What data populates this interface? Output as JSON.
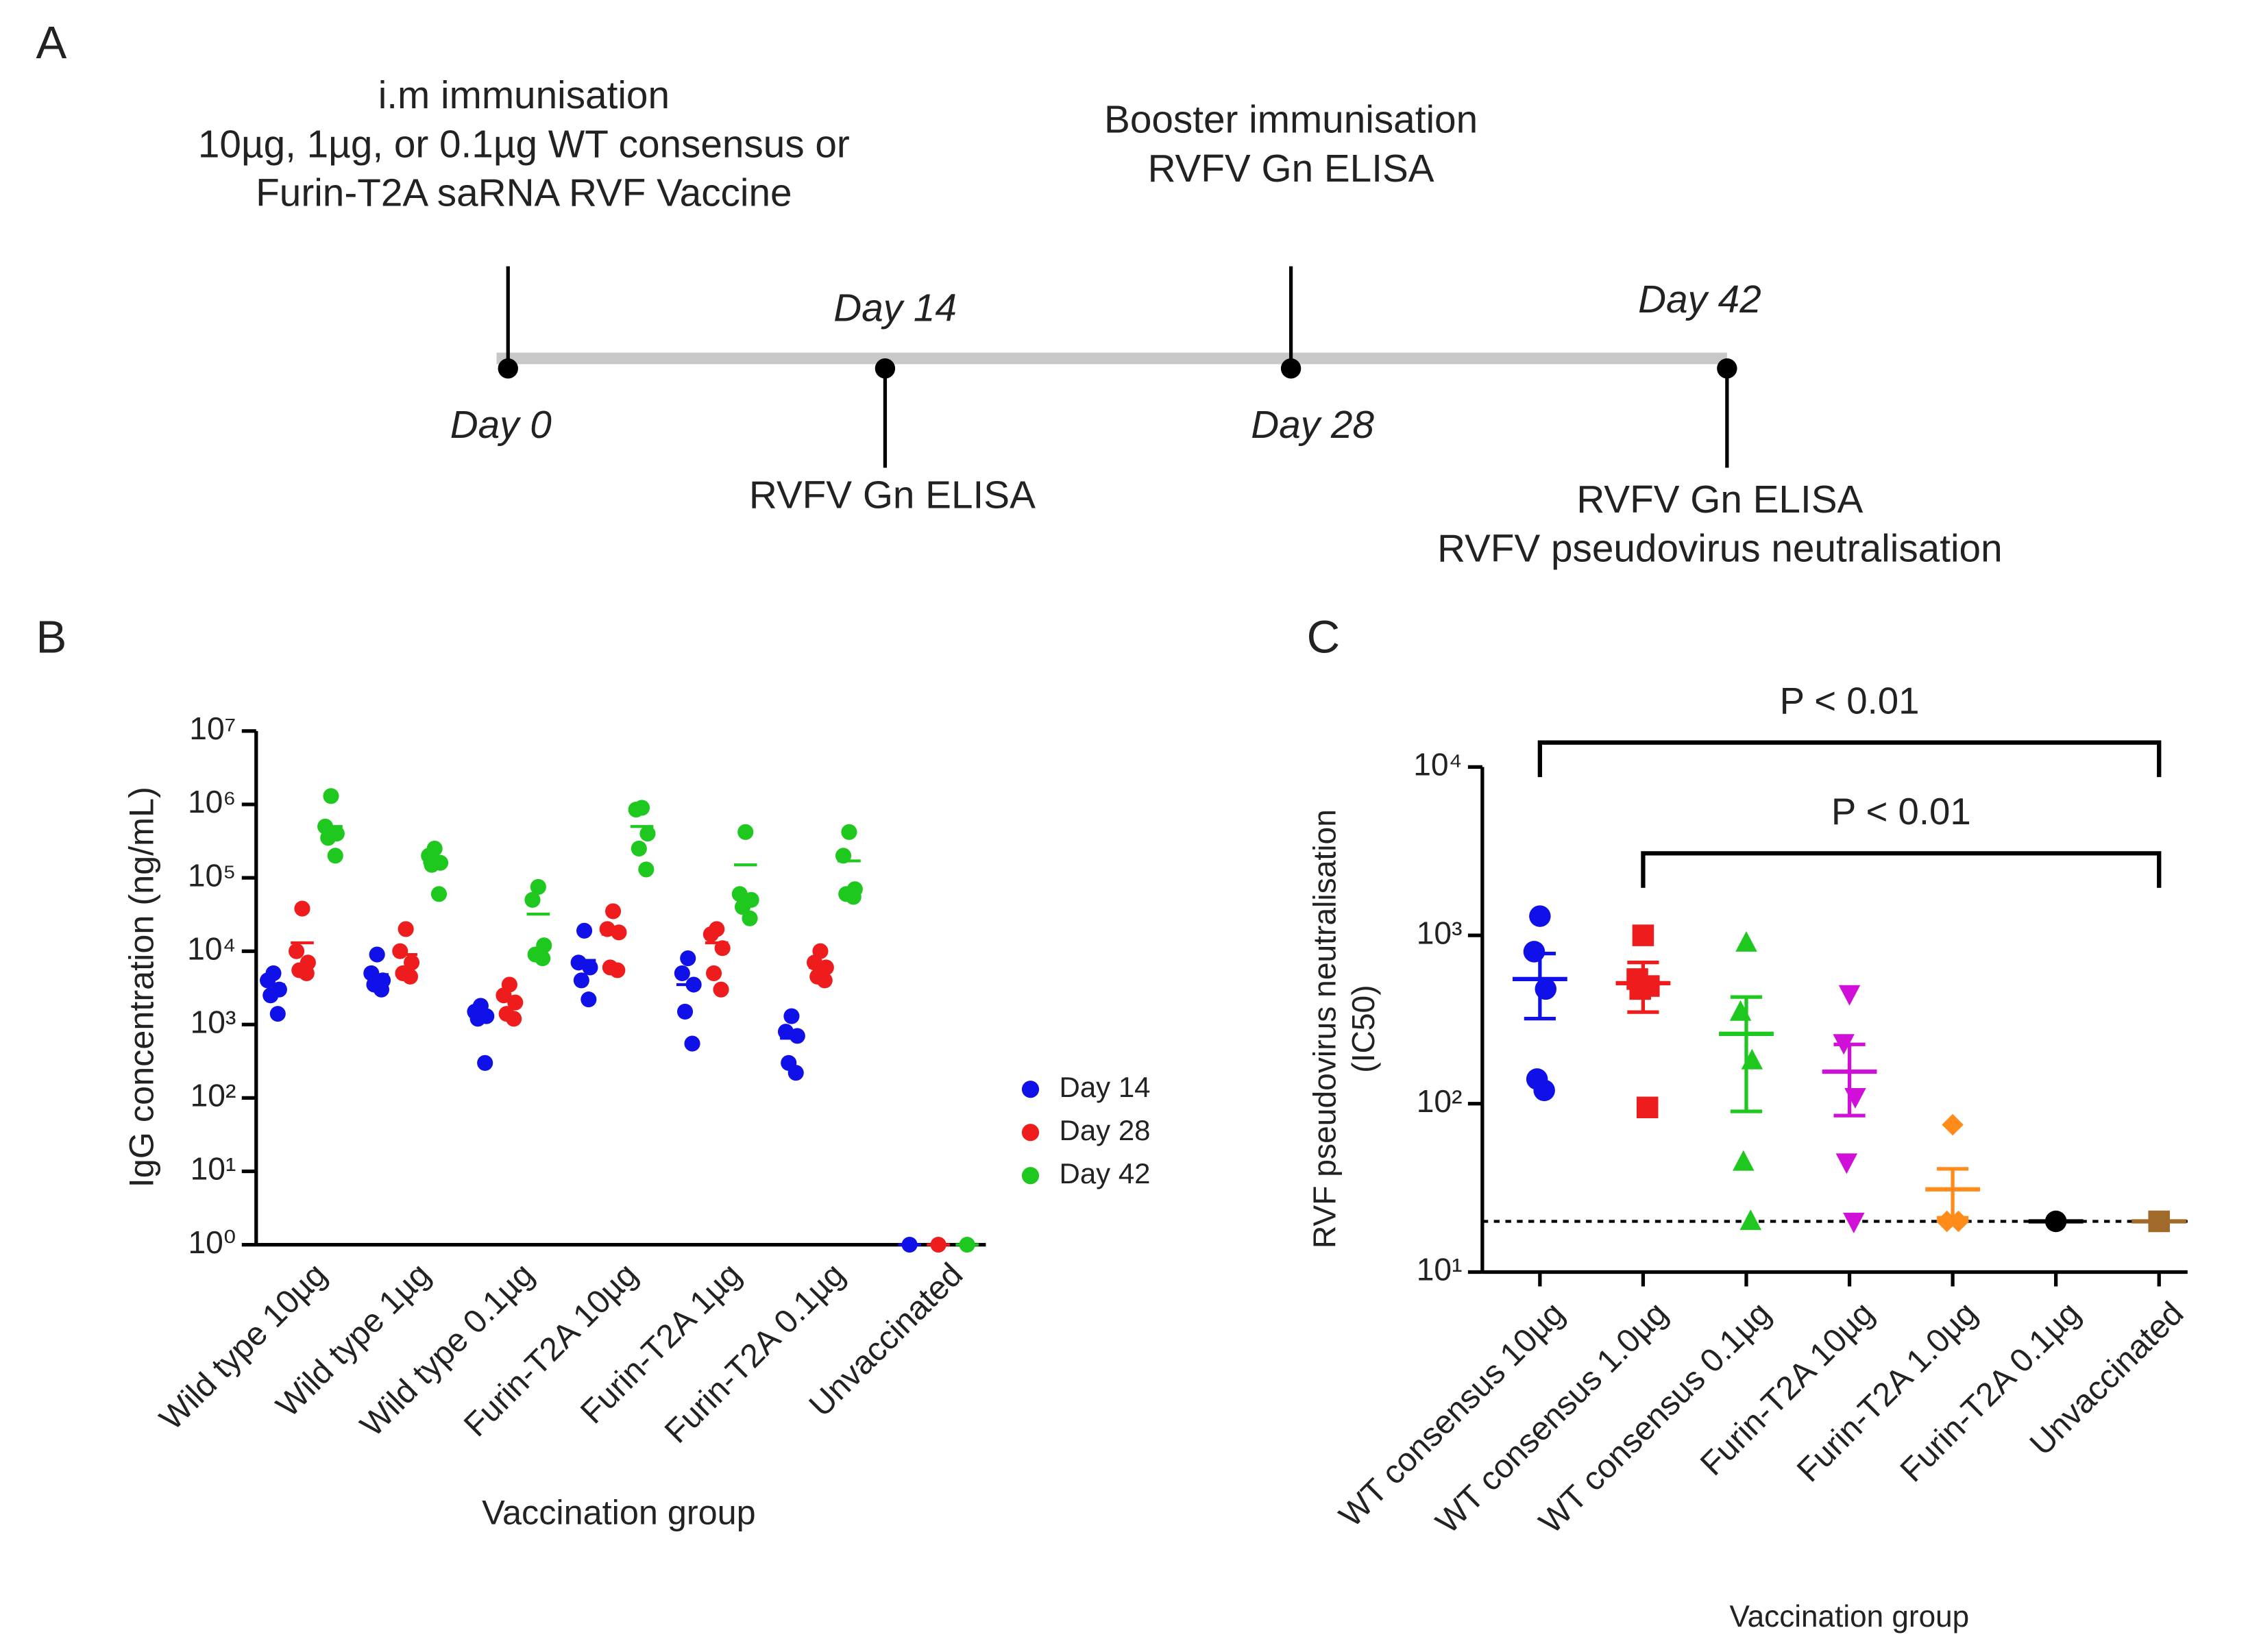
{
  "panels": [
    "A",
    "B",
    "C"
  ],
  "timeline": {
    "days": [
      "Day 0",
      "Day 14",
      "Day 28",
      "Day 42"
    ],
    "notes": [
      [
        "i.m immunisation",
        "10µg, 1µg, or 0.1µg WT consensus or",
        "Furin-T2A saRNA RVF Vaccine"
      ],
      [
        "RVFV Gn ELISA"
      ],
      [
        "Booster immunisation",
        "RVFV Gn ELISA"
      ],
      [
        "RVFV Gn ELISA",
        "RVFV pseudovirus neutralisation"
      ]
    ]
  },
  "chart_data": [
    {
      "type": "dotplot",
      "xlabel": "Vaccination group",
      "ylabel": "IgG concentration (ng/mL)",
      "log_y": true,
      "legend": "right",
      "categories": [
        "Wild type 10µg",
        "Wild type 1µg",
        "Wild type 0.1µg",
        "Furin-T2A 10µg",
        "Furin-T2A 1µg",
        "Furin-T2A 0.1µg",
        "Unvaccinated"
      ],
      "ylim": [
        1,
        10000000
      ],
      "yticks": [
        {
          "value": 1,
          "label": "10⁰"
        },
        {
          "value": 10,
          "label": "10¹"
        },
        {
          "value": 100,
          "label": "10²"
        },
        {
          "value": 1000,
          "label": "10³"
        },
        {
          "value": 10000,
          "label": "10⁴"
        },
        {
          "value": 100000,
          "label": "10⁵"
        },
        {
          "value": 1000000,
          "label": "10⁶"
        },
        {
          "value": 10000000,
          "label": "10⁷"
        }
      ],
      "series": [
        {
          "name": "Day 14",
          "color": "#1010e8",
          "values": [
            [
              5000,
              4000,
              3000,
              2500,
              1400
            ],
            [
              9000,
              5000,
              4000,
              3500,
              3000
            ],
            [
              1800,
              1500,
              1300,
              1200,
              300
            ],
            [
              19000,
              7000,
              6000,
              4000,
              2200
            ],
            [
              8000,
              5000,
              3500,
              1500,
              550
            ],
            [
              1300,
              800,
              700,
              300,
              220
            ],
            [
              1
            ]
          ],
          "means": [
            3500,
            4800,
            1300,
            7500,
            3500,
            650,
            1
          ]
        },
        {
          "name": "Day 28",
          "color": "#ee1c1c",
          "values": [
            [
              38000,
              10000,
              7000,
              5500,
              5000
            ],
            [
              20000,
              10000,
              7000,
              5000,
              4500
            ],
            [
              3500,
              2500,
              2000,
              1400,
              1200
            ],
            [
              35000,
              20000,
              18000,
              6000,
              5500
            ],
            [
              20000,
              17000,
              11000,
              5000,
              3000
            ],
            [
              10000,
              7000,
              6000,
              4500,
              4000
            ],
            [
              1
            ]
          ],
          "means": [
            13000,
            9000,
            2200,
            17000,
            13000,
            6000,
            1
          ]
        },
        {
          "name": "Day 42",
          "color": "#1ec81e",
          "values": [
            [
              1300000,
              500000,
              400000,
              350000,
              200000
            ],
            [
              250000,
              200000,
              160000,
              150000,
              60000
            ],
            [
              75000,
              50000,
              12000,
              9000,
              8000
            ],
            [
              900000,
              850000,
              400000,
              250000,
              130000
            ],
            [
              420000,
              60000,
              50000,
              40000,
              28000
            ],
            [
              420000,
              200000,
              70000,
              60000,
              55000
            ],
            [
              1
            ]
          ],
          "means": [
            500000,
            160000,
            32000,
            500000,
            150000,
            170000,
            1
          ]
        }
      ]
    },
    {
      "type": "meanerror",
      "xlabel": "Vaccination group",
      "ylabel": [
        "RVF pseudovirus neutralisation",
        "(IC50)"
      ],
      "log_y": true,
      "categories": [
        "WT consensus 10µg",
        "WT consensus 1.0µg",
        "WT consensus 0.1µg",
        "Furin-T2A 10µg",
        "Furin-T2A 1.0µg",
        "Furin-T2A 0.1µg",
        "Unvaccinated"
      ],
      "ylim": [
        10,
        10000
      ],
      "yticks": [
        {
          "value": 10,
          "label": "10¹"
        },
        {
          "value": 100,
          "label": "10²"
        },
        {
          "value": 1000,
          "label": "10³"
        },
        {
          "value": 10000,
          "label": "10⁴"
        }
      ],
      "colors": [
        "#1010e8",
        "#ee1c1c",
        "#1ec81e",
        "#d010d8",
        "#ff8c1a",
        "#000000",
        "#a06a2a"
      ],
      "markers": [
        "circle",
        "square",
        "triangle-up",
        "triangle-down",
        "diamond",
        "circle",
        "square"
      ],
      "values": [
        [
          1300,
          800,
          480,
          140,
          120
        ],
        [
          1000,
          550,
          500,
          480,
          95
        ],
        [
          900,
          350,
          180,
          45,
          20
        ],
        [
          450,
          230,
          110,
          45,
          20
        ],
        [
          75,
          20,
          20
        ],
        [
          20
        ],
        [
          20
        ]
      ],
      "means": [
        550,
        520,
        260,
        155,
        31,
        20,
        20
      ],
      "errors": [
        230,
        170,
        170,
        70,
        10,
        0,
        0
      ],
      "hline": 20,
      "annotations": [
        {
          "text": "P < 0.01",
          "between": [
            "WT consensus 10µg",
            "Unvaccinated"
          ]
        },
        {
          "text": "P < 0.01",
          "between": [
            "WT consensus 1.0µg",
            "Unvaccinated"
          ]
        }
      ]
    }
  ]
}
